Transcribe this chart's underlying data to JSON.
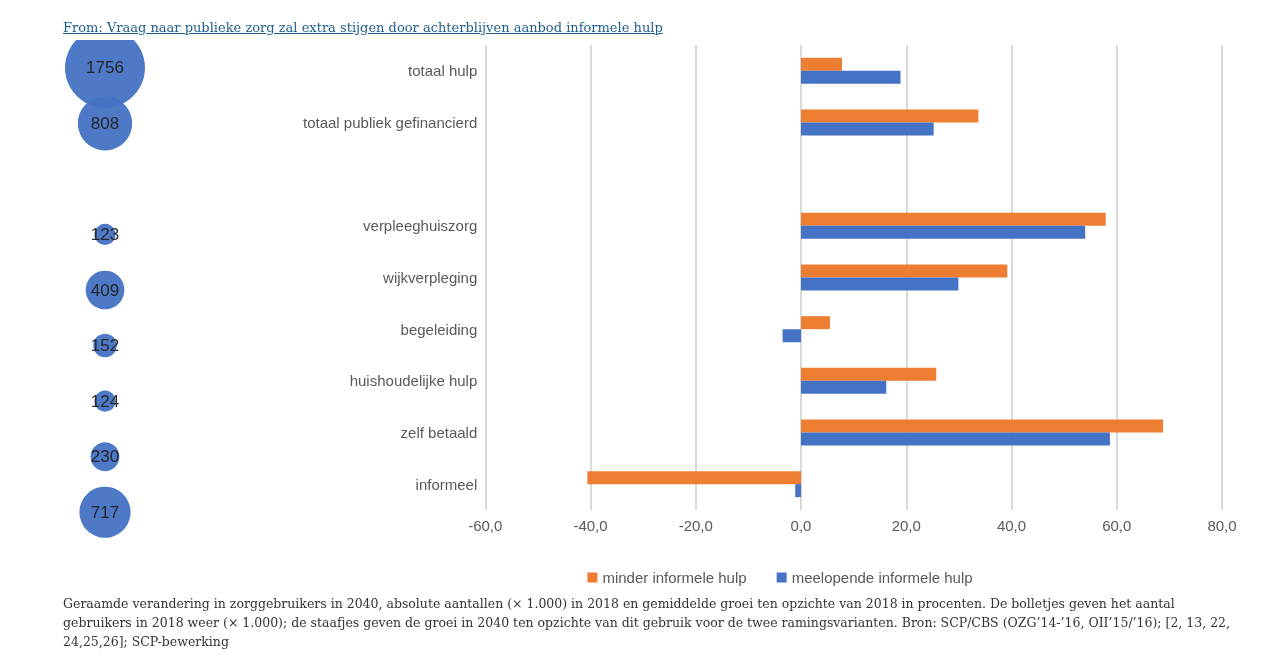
{
  "chart_data": [
    {
      "type": "other",
      "values": [
        1756,
        808,
        null,
        123,
        409,
        152,
        124,
        230,
        717
      ],
      "color": "#4472c4",
      "data_labels": true
    },
    {
      "type": "bar",
      "orientation": "horizontal",
      "title": "From: Vraag naar publieke zorg zal extra stijgen door achterblijven aanbod informele hulp",
      "categories": [
        "totaal hulp",
        "totaal publiek gefinancierd",
        null,
        "verpleeghuiszorg",
        "wijkverpleging",
        "begeleiding",
        "huishoudelijke hulp",
        "zelf betaald",
        "informeel"
      ],
      "series": [
        {
          "name": "minder informele hulp",
          "color": "#ed7d31",
          "values": [
            7.8,
            33.7,
            null,
            57.9,
            39.2,
            5.5,
            25.7,
            68.8,
            -40.6
          ]
        },
        {
          "name": "meelopende informele hulp",
          "color": "#4472c4",
          "values": [
            18.9,
            25.2,
            null,
            54.0,
            29.9,
            -3.5,
            16.2,
            58.7,
            -1.1
          ]
        }
      ],
      "xlim": [
        -60,
        80
      ],
      "xticks": [
        {
          "value": -60,
          "label": "-60,0"
        },
        {
          "value": -40,
          "label": "-40,0"
        },
        {
          "value": -20,
          "label": "-20,0"
        },
        {
          "value": 0,
          "label": "0,0"
        },
        {
          "value": 20,
          "label": "20,0"
        },
        {
          "value": 40,
          "label": "40,0"
        },
        {
          "value": 60,
          "label": "60,0"
        },
        {
          "value": 80,
          "label": "80,0"
        }
      ],
      "grid": "x",
      "legend": "bottom",
      "annotations": [
        "Geraamde verandering in zorggebruikers in 2040, absolute aantallen (× 1.000) in 2018 en gemiddelde groei ten opzichte van 2018 in procenten. De bolletjes geven het aantal gebruikers in 2018 weer (× 1.000); de staafjes geven de groei in 2040 ten opzichte van dit gebruik voor de twee ramingsvarianten. Bron: SCP/CBS (OZG’14-’16, OII’15/’16); [2, 13, 22, 24,25,26]; SCP-bewerking"
      ]
    }
  ]
}
